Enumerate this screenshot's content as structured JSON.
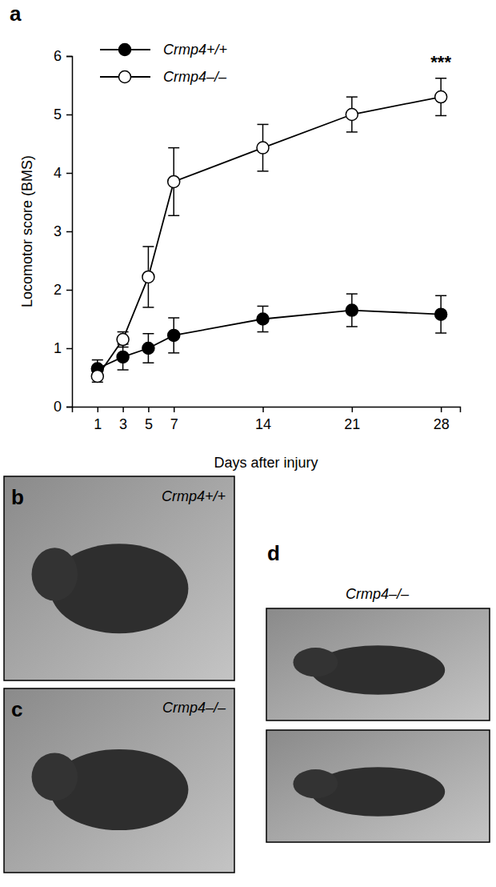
{
  "chart_data": {
    "type": "line",
    "panel": "a",
    "x_label": "Days after injury",
    "y_label": "Locomotor score (BMS)",
    "x": [
      1,
      3,
      5,
      7,
      14,
      21,
      28
    ],
    "xlim": [
      -1,
      29.5
    ],
    "xticks": [
      1,
      3,
      5,
      7,
      14,
      21,
      28
    ],
    "ylim": [
      0,
      6
    ],
    "yticks": [
      0,
      1,
      2,
      3,
      4,
      5,
      6
    ],
    "grid": false,
    "legend": "upper left",
    "series": [
      {
        "name": "Crmp4+/+",
        "color": "#000000",
        "marker": "filled-circle",
        "line_style": "solid",
        "values": [
          0.65,
          0.85,
          1.0,
          1.22,
          1.5,
          1.65,
          1.58
        ],
        "errors": [
          0.15,
          0.22,
          0.25,
          0.3,
          0.22,
          0.28,
          0.32
        ]
      },
      {
        "name": "Crmp4–/–",
        "color": "#000000",
        "marker": "open-circle",
        "line_style": "solid",
        "values": [
          0.52,
          1.15,
          2.22,
          3.85,
          4.43,
          5.0,
          5.3
        ],
        "errors": [
          0.1,
          0.13,
          0.52,
          0.58,
          0.4,
          0.3,
          0.32
        ]
      }
    ],
    "annotations": [
      {
        "x": 28,
        "y": 5.8,
        "text": "***"
      }
    ]
  },
  "photos": [
    {
      "panel": "b",
      "caption": "Crmp4+/+"
    },
    {
      "panel": "c",
      "caption": "Crmp4–/–"
    },
    {
      "panel": "d",
      "caption": "Crmp4–/–"
    }
  ]
}
